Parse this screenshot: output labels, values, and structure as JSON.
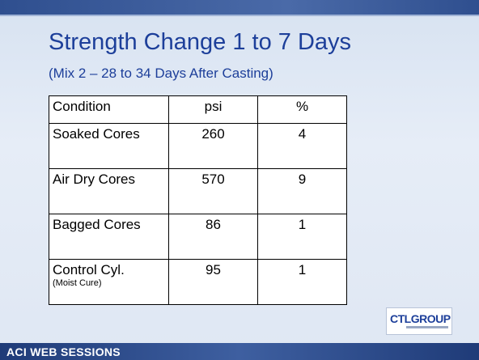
{
  "title": "Strength Change 1 to 7 Days",
  "subtitle": "(Mix 2 – 28 to 34 Days After Casting)",
  "table": {
    "header": [
      "Condition",
      "psi",
      "%"
    ],
    "rows": [
      {
        "condition": "Soaked Cores",
        "psi": "260",
        "pct": "4"
      },
      {
        "condition": "Air Dry Cores",
        "psi": "570",
        "pct": "9"
      },
      {
        "condition": "Bagged Cores",
        "psi": "86",
        "pct": "1"
      },
      {
        "condition": "Control Cyl.",
        "note": "(Moist Cure)",
        "psi": "95",
        "pct": "1"
      }
    ]
  },
  "logo": "CTLGROUP",
  "footer": "ACI WEB SESSIONS"
}
